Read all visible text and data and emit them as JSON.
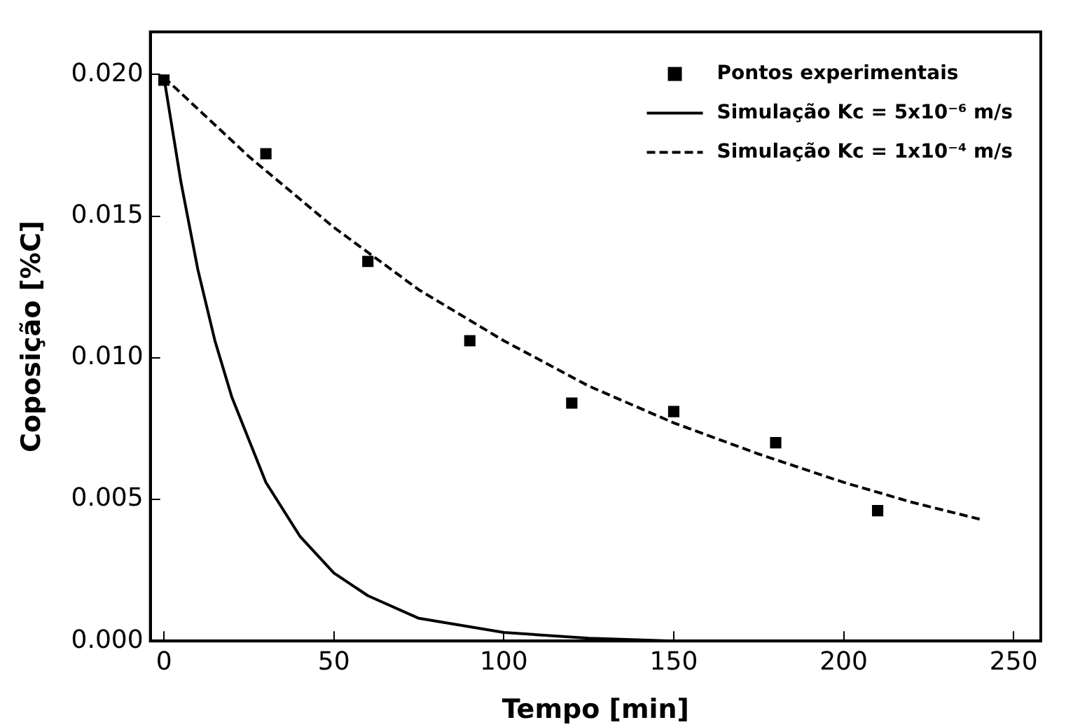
{
  "chart_data": {
    "type": "scatter",
    "xlabel": "Tempo [min]",
    "ylabel": "Coposição [%C]",
    "xlim": [
      -4,
      258
    ],
    "ylim": [
      0,
      0.0215
    ],
    "xticks": [
      0,
      50,
      100,
      150,
      200,
      250
    ],
    "yticks": [
      {
        "value": 0,
        "label": "0.000"
      },
      {
        "value": 0.005,
        "label": "0.005"
      },
      {
        "value": 0.01,
        "label": "0.010"
      },
      {
        "value": 0.015,
        "label": "0.015"
      },
      {
        "value": 0.02,
        "label": "0.020"
      }
    ],
    "grid": false,
    "legend": "top right",
    "series": [
      {
        "name": "Pontos experimentais",
        "marker": "square",
        "color": "#000000",
        "x": [
          0,
          30,
          60,
          90,
          120,
          150,
          180,
          210
        ],
        "values": [
          0.0198,
          0.0172,
          0.0134,
          0.0106,
          0.0084,
          0.0081,
          0.007,
          0.0046
        ]
      },
      {
        "name": "Simulação Kc = 5x10⁻⁶ m/s",
        "type": "line",
        "line_style": "solid",
        "marker": "none",
        "color": "#000000",
        "x": [
          0,
          5,
          10,
          15,
          20,
          30,
          40,
          50,
          60,
          75,
          100,
          125,
          150,
          200,
          240
        ],
        "values": [
          0.0199,
          0.0162,
          0.0131,
          0.0106,
          0.0086,
          0.0056,
          0.0037,
          0.0024,
          0.0016,
          0.0008,
          0.0003,
          0.0001,
          0,
          0,
          0
        ]
      },
      {
        "name": "Simulação Kc = 1x10⁻⁴ m/s",
        "type": "line",
        "line_style": "dashed",
        "marker": "none",
        "color": "#000000",
        "x": [
          0,
          25,
          50,
          75,
          100,
          125,
          150,
          175,
          200,
          220,
          240
        ],
        "values": [
          0.0199,
          0.0171,
          0.0146,
          0.0124,
          0.0106,
          0.009,
          0.0077,
          0.0066,
          0.0056,
          0.0049,
          0.0043
        ]
      }
    ]
  }
}
